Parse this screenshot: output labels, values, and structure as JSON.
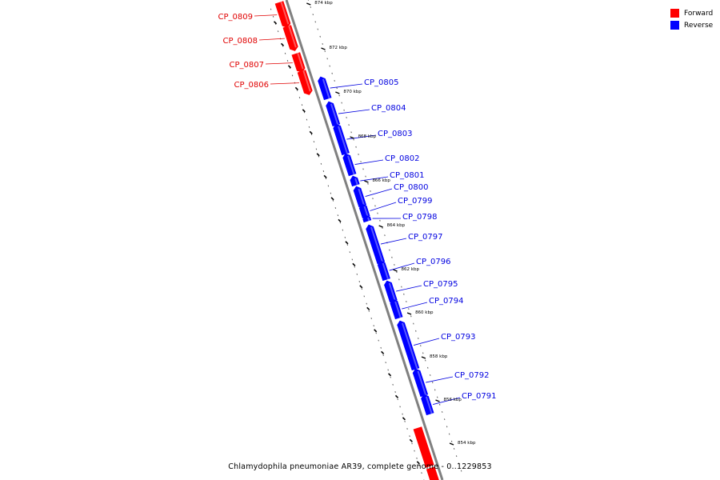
{
  "legend": {
    "items": [
      {
        "label": "Forward",
        "color": "#ff0000"
      },
      {
        "label": "Reverse",
        "color": "#0000ff"
      }
    ]
  },
  "caption": "Chlamydophila pneumoniae AR39, complete genome - 0..1229853",
  "colors": {
    "forward": "#ff0000",
    "reverse": "#0000ff",
    "axis": "#808080",
    "forward_label": "#e00000",
    "reverse_label": "#0000e0"
  },
  "ticks": [
    "874 kbp",
    "872 kbp",
    "870 kbp",
    "868 kbp",
    "866 kbp",
    "864 kbp",
    "862 kbp",
    "860 kbp",
    "858 kbp",
    "856 kbp",
    "854 kbp"
  ],
  "genes": [
    {
      "name": "CP_0809",
      "strand": "forward"
    },
    {
      "name": "CP_0808",
      "strand": "forward"
    },
    {
      "name": "CP_0807",
      "strand": "forward"
    },
    {
      "name": "CP_0806",
      "strand": "forward"
    },
    {
      "name": "CP_0805",
      "strand": "reverse"
    },
    {
      "name": "CP_0804",
      "strand": "reverse"
    },
    {
      "name": "CP_0803",
      "strand": "reverse"
    },
    {
      "name": "CP_0802",
      "strand": "reverse"
    },
    {
      "name": "CP_0801",
      "strand": "reverse"
    },
    {
      "name": "CP_0800",
      "strand": "reverse"
    },
    {
      "name": "CP_0799",
      "strand": "reverse"
    },
    {
      "name": "CP_0798",
      "strand": "reverse"
    },
    {
      "name": "CP_0797",
      "strand": "reverse"
    },
    {
      "name": "CP_0796",
      "strand": "reverse"
    },
    {
      "name": "CP_0795",
      "strand": "reverse"
    },
    {
      "name": "CP_0794",
      "strand": "reverse"
    },
    {
      "name": "CP_0793",
      "strand": "reverse"
    },
    {
      "name": "CP_0792",
      "strand": "reverse"
    },
    {
      "name": "CP_0791",
      "strand": "reverse"
    }
  ]
}
